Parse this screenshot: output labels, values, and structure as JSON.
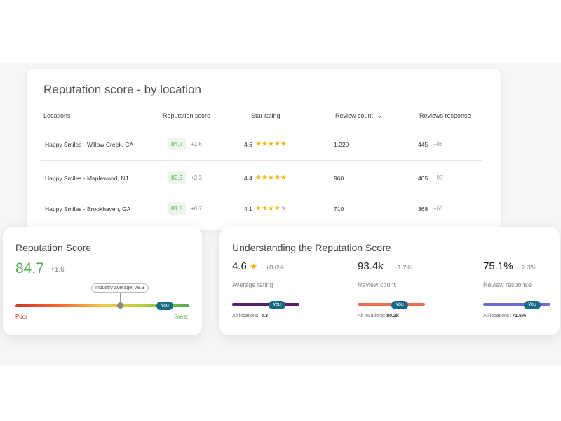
{
  "table": {
    "title": "Reputation score - by location",
    "headers": {
      "locations": "Locations",
      "reputation": "Reputation score",
      "star": "Star rating",
      "review_count": "Review count",
      "review_count_sort": "⌄",
      "reviews_response": "Reviews response"
    },
    "rows": [
      {
        "location": "Happy Smiles - Willow Creek, CA",
        "score": "84.7",
        "delta": "+1.6",
        "rating": "4.6",
        "stars": "★★★★★",
        "stars_full": 5,
        "review_count": "1,220",
        "response": "445",
        "response_delta": "+86"
      },
      {
        "location": "Happy Smiles - Maplewood, NJ",
        "score": "82.3",
        "delta": "+2.3",
        "rating": "4.4",
        "stars": "★★★★★",
        "stars_full": 5,
        "review_count": "960",
        "response": "405",
        "response_delta": "+97"
      },
      {
        "location": "Happy Smiles - Brookhaven, GA",
        "score": "81.5",
        "delta": "+0.7",
        "rating": "4.1",
        "stars": "★★★★",
        "stars_off": "★",
        "stars_full": 4,
        "review_count": "710",
        "response": "368",
        "response_delta": "+60"
      }
    ]
  },
  "reputation_card": {
    "title": "Reputation Score",
    "score": "84.7",
    "delta": "+1.6",
    "industry_label": "Industry average: 78.9",
    "you_label": "You",
    "poor_label": "Poor",
    "great_label": "Great",
    "industry_position": 0.6,
    "you_position": 0.86
  },
  "understanding_card": {
    "title": "Understanding the Reputation Score",
    "metrics": [
      {
        "value": "4.6",
        "star": "★",
        "delta": "+0.6%",
        "label": "Average rating",
        "you": "You",
        "all_label": "All locations:",
        "all_value": "4.3",
        "bar_color": "#5a1e6e",
        "you_position": 0.58
      },
      {
        "value": "93.4k",
        "delta": "+1.2%",
        "label": "Review count",
        "you": "You",
        "all_label": "All locations:",
        "all_value": "80.2k",
        "bar_color": "#ef6e52",
        "you_position": 0.6
      },
      {
        "value": "75.1%",
        "delta": "+2.3%",
        "label": "Review response",
        "you": "You",
        "all_label": "All locations:",
        "all_value": "71.5%",
        "bar_color": "#6f6ad6",
        "you_position": 0.7
      }
    ],
    "you_color": "#176b87"
  }
}
